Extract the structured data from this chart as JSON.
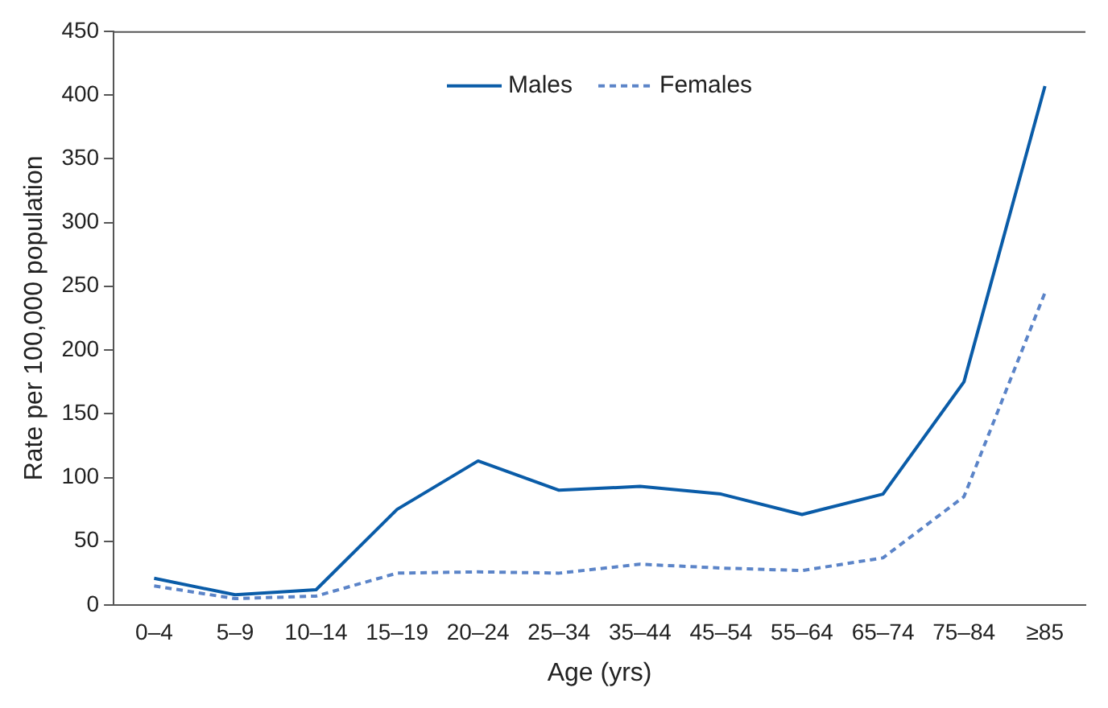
{
  "chart_data": {
    "type": "line",
    "xlabel": "Age (yrs)",
    "ylabel": "Rate per 100,000 population",
    "categories": [
      "0–4",
      "5–9",
      "10–14",
      "15–19",
      "20–24",
      "25–34",
      "35–44",
      "45–54",
      "55–64",
      "65–74",
      "75–84",
      "≥85"
    ],
    "series": [
      {
        "name": "Males",
        "color": "#0a5ca8",
        "line_style": "solid",
        "values": [
          21,
          8,
          12,
          75,
          113,
          90,
          93,
          87,
          71,
          87,
          175,
          407
        ]
      },
      {
        "name": "Females",
        "color": "#5b84c8",
        "line_style": "dotted",
        "values": [
          15,
          5,
          7,
          25,
          26,
          25,
          32,
          29,
          27,
          37,
          85,
          245
        ]
      }
    ],
    "ylim": [
      0,
      450
    ],
    "yticks": [
      0,
      50,
      100,
      150,
      200,
      250,
      300,
      350,
      400,
      450
    ],
    "grid": false,
    "legend": "top",
    "marker": "none"
  }
}
